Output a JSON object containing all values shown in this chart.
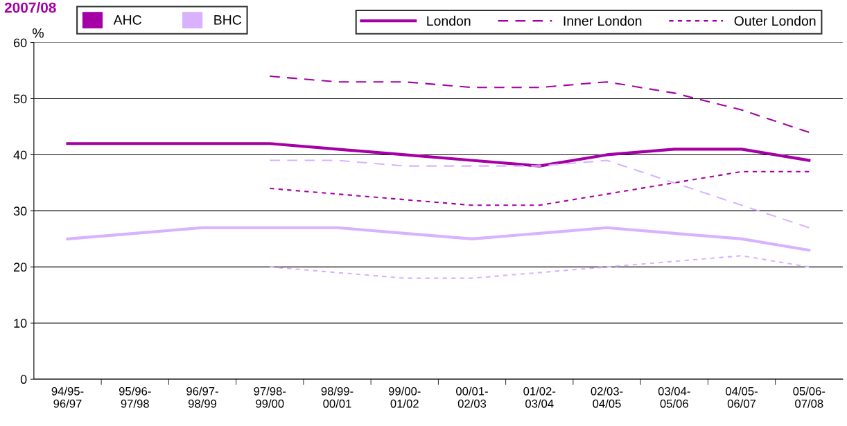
{
  "chart_data": {
    "type": "line",
    "title": "2007/08",
    "ylabel": "%",
    "categories": [
      "94/95-\n96/97",
      "95/96-\n97/98",
      "96/97-\n98/99",
      "97/98-\n99/00",
      "98/99-\n00/01",
      "99/00-\n01/02",
      "00/01-\n02/03",
      "01/02-\n03/04",
      "02/03-\n04/05",
      "03/04-\n05/06",
      "04/05-\n06/07",
      "05/06-\n07/08"
    ],
    "ylim": [
      0,
      60
    ],
    "yticks": [
      0,
      10,
      20,
      30,
      40,
      50,
      60
    ],
    "grid": "y",
    "legend": "top",
    "marker": "none",
    "series": [
      {
        "type": "bar",
        "name": "AHC",
        "color": "#a500a5",
        "values": [
          null,
          null,
          null,
          null,
          null,
          null,
          null,
          null,
          null,
          null,
          null,
          null
        ]
      },
      {
        "type": "bar",
        "name": "BHC",
        "color": "#d8b2ff",
        "values": [
          null,
          null,
          null,
          null,
          null,
          null,
          null,
          null,
          null,
          null,
          null,
          null
        ]
      },
      {
        "name": "London",
        "color": "#a500a5",
        "line_style": "solid",
        "values": [
          42,
          42,
          42,
          42,
          41,
          40,
          39,
          38,
          40,
          41,
          41,
          39
        ]
      },
      {
        "name": "Inner London",
        "color": "#a500a5",
        "line_style": "dashed",
        "values": [
          null,
          null,
          null,
          54,
          53,
          53,
          52,
          52,
          53,
          51,
          48,
          44
        ]
      },
      {
        "name": "Outer London",
        "color": "#a500a5",
        "line_style": "dotted",
        "values": [
          null,
          null,
          null,
          34,
          33,
          32,
          31,
          31,
          33,
          35,
          37,
          37
        ]
      },
      {
        "color": "#d8b2ff",
        "line_style": "solid",
        "values": [
          25,
          26,
          27,
          27,
          27,
          26,
          25,
          26,
          27,
          26,
          25,
          23
        ]
      },
      {
        "color": "#d8b2ff",
        "line_style": "dashed",
        "values": [
          null,
          null,
          null,
          39,
          39,
          38,
          38,
          38,
          39,
          35,
          31,
          27
        ]
      },
      {
        "color": "#d8b2ff",
        "line_style": "dotted",
        "values": [
          null,
          null,
          null,
          20,
          19,
          18,
          18,
          19,
          20,
          21,
          22,
          20
        ]
      }
    ]
  }
}
